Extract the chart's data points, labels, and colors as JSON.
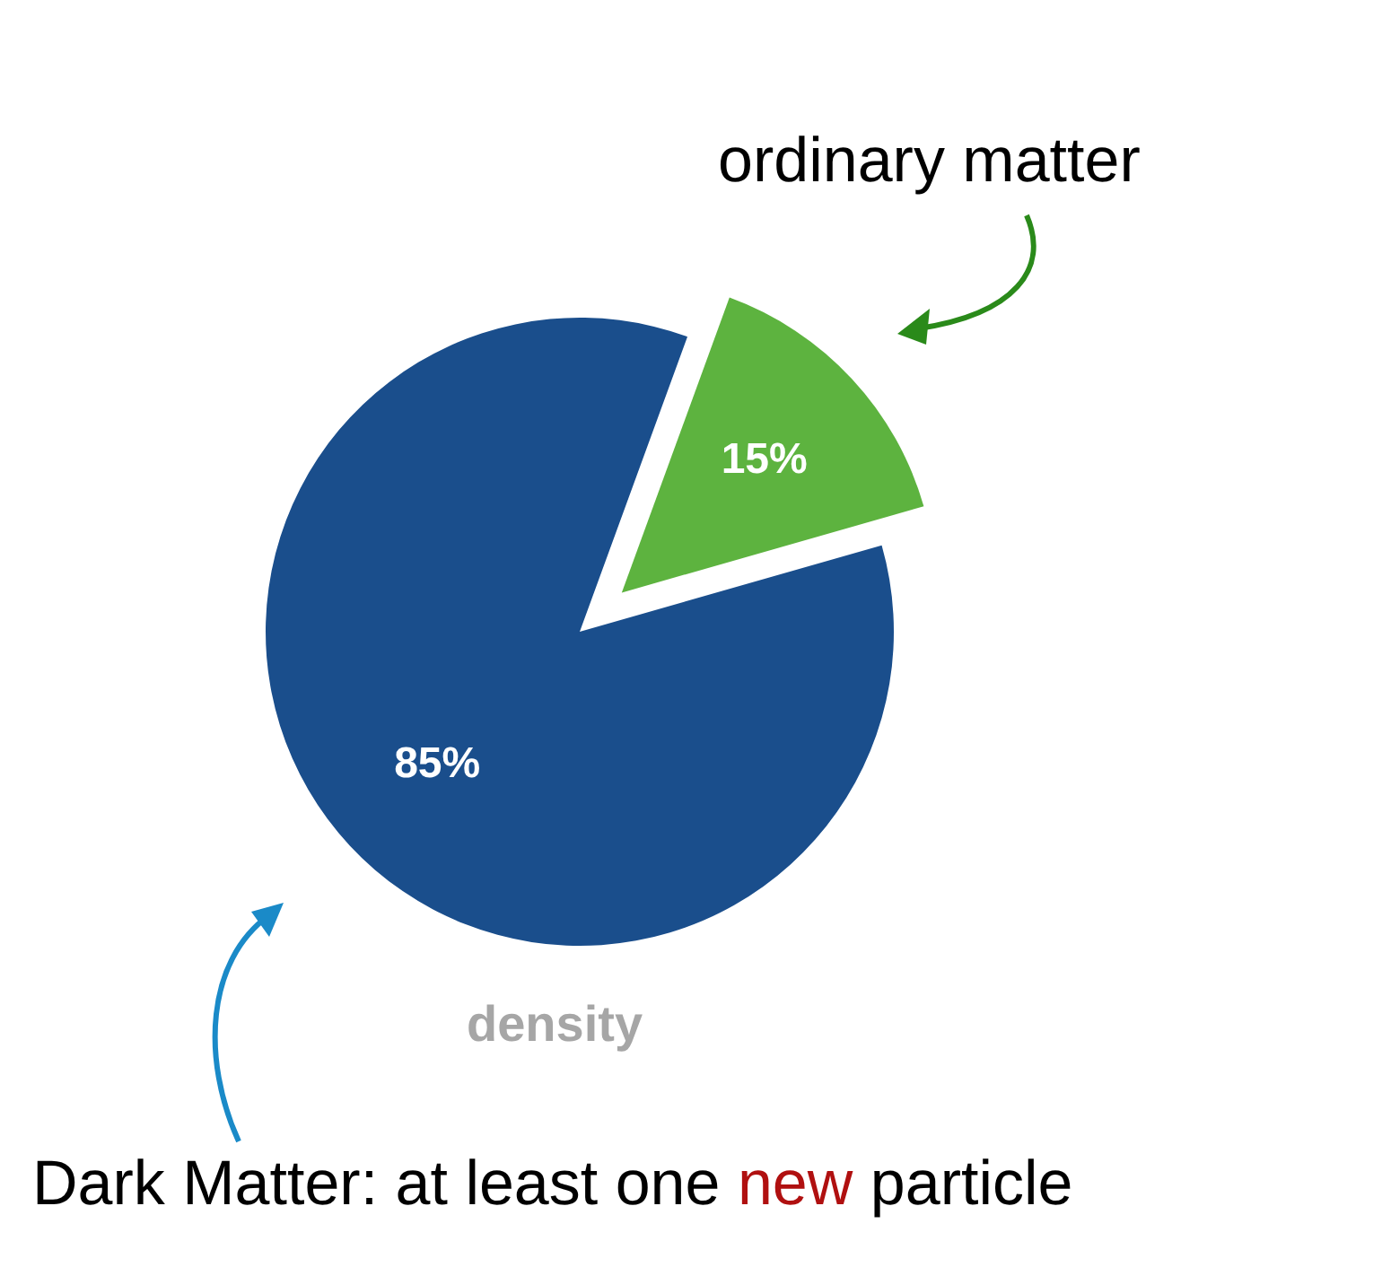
{
  "chart_data": {
    "type": "pie",
    "categories": [
      "ordinary matter",
      "Dark Matter: at least one new particle"
    ],
    "values": [
      15,
      85
    ],
    "colors": [
      "#5db33f",
      "#1a4e8c"
    ],
    "value_labels": [
      "15%",
      "85%"
    ],
    "annotations": [
      "density"
    ]
  }
}
